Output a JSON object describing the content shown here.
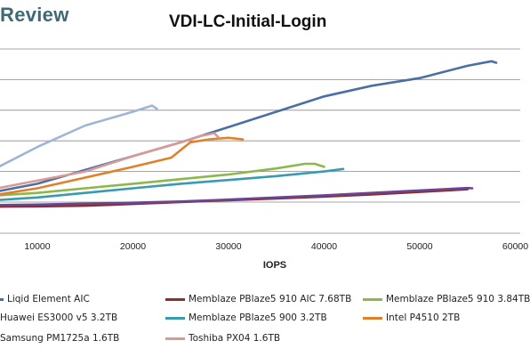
{
  "header": {
    "brand": "Review",
    "title": "VDI-LC-Initial-Login"
  },
  "chart_data": {
    "type": "line",
    "title": "VDI-LC-Initial-Login",
    "xlabel": "IOPS",
    "ylabel": "",
    "xlim": [
      5000,
      58000
    ],
    "x_ticks": [
      10000,
      20000,
      30000,
      40000,
      50000,
      60000
    ],
    "x_tick_labels": [
      "10000",
      "20000",
      "30000",
      "40000",
      "50000",
      "60000"
    ],
    "ylim": [
      0,
      7
    ],
    "y_gridlines": [
      1,
      2,
      3,
      4,
      5,
      6
    ],
    "grid": true,
    "legend_position": "bottom",
    "series": [
      {
        "name": "Liqid Element AIC",
        "color": "#4a6fa5",
        "x": [
          5000,
          10000,
          15000,
          20000,
          25000,
          30000,
          35000,
          40000,
          45000,
          50000,
          55000,
          57500,
          58000
        ],
        "y": [
          1.3,
          1.6,
          2.05,
          2.5,
          2.95,
          3.45,
          3.95,
          4.45,
          4.8,
          5.05,
          5.45,
          5.6,
          5.55
        ]
      },
      {
        "name": "Memblaze PBlaze5 910 AIC 7.68TB",
        "color": "#8b2e2e",
        "x": [
          5000,
          10000,
          15000,
          20000,
          25000,
          30000,
          35000,
          40000,
          45000,
          50000,
          55000
        ],
        "y": [
          0.85,
          0.86,
          0.88,
          0.94,
          1.0,
          1.06,
          1.12,
          1.18,
          1.25,
          1.33,
          1.42
        ]
      },
      {
        "name": "Memblaze PBlaze5 910 3.84TB",
        "color": "#8db74a",
        "x": [
          5000,
          10000,
          15000,
          20000,
          25000,
          30000,
          35000,
          38000,
          39000,
          40000
        ],
        "y": [
          1.2,
          1.3,
          1.45,
          1.6,
          1.75,
          1.9,
          2.1,
          2.25,
          2.25,
          2.15
        ]
      },
      {
        "name": "Huawei ES3000 v5 3.2TB",
        "color": "#6a4595",
        "x": [
          5000,
          10000,
          15000,
          20000,
          25000,
          30000,
          35000,
          40000,
          45000,
          50000,
          55000,
          55500
        ],
        "y": [
          0.9,
          0.92,
          0.95,
          0.98,
          1.02,
          1.08,
          1.15,
          1.22,
          1.3,
          1.38,
          1.46,
          1.45
        ]
      },
      {
        "name": "Memblaze PBlaze5 900 3.2TB",
        "color": "#3a9ab0",
        "x": [
          5000,
          10000,
          15000,
          20000,
          25000,
          30000,
          35000,
          40000,
          42000
        ],
        "y": [
          1.05,
          1.15,
          1.3,
          1.45,
          1.6,
          1.72,
          1.85,
          2.0,
          2.08
        ]
      },
      {
        "name": "Intel P4510 2TB",
        "color": "#e0812a",
        "x": [
          5000,
          10000,
          15000,
          20000,
          24000,
          26000,
          28000,
          30000,
          31500
        ],
        "y": [
          1.2,
          1.45,
          1.8,
          2.15,
          2.45,
          2.95,
          3.05,
          3.1,
          3.05
        ]
      },
      {
        "name": "Samsung PM1725a 1.6TB",
        "color": "#9fb5d8",
        "x": [
          5000,
          10000,
          15000,
          20000,
          22000,
          22500
        ],
        "y": [
          2.0,
          2.8,
          3.5,
          3.95,
          4.15,
          4.05
        ]
      },
      {
        "name": "Toshiba PX04 1.6TB",
        "color": "#d89a96",
        "x": [
          5000,
          10000,
          15000,
          20000,
          25000,
          27000,
          28500,
          29000
        ],
        "y": [
          1.4,
          1.7,
          2.0,
          2.5,
          2.95,
          3.15,
          3.25,
          3.1
        ]
      }
    ]
  },
  "legend": [
    "Liqid Element AIC",
    "Memblaze PBlaze5 910 AIC 7.68TB",
    "Memblaze PBlaze5 910 3.84TB",
    "Huawei ES3000 v5 3.2TB",
    "Memblaze PBlaze5 900 3.2TB",
    "Intel P4510 2TB",
    "Samsung PM1725a 1.6TB",
    "Toshiba PX04 1.6TB"
  ]
}
